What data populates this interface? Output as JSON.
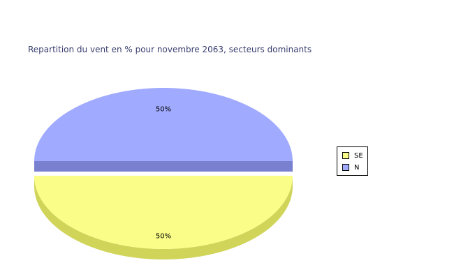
{
  "chart_data": {
    "type": "pie",
    "title": "Repartition du vent en % pour novembre 2063, secteurs dominants",
    "slices": [
      {
        "name": "SE",
        "value": 50,
        "label": "50%",
        "color": "#fafe88",
        "side_color": "#d0d458"
      },
      {
        "name": "N",
        "value": 50,
        "label": "50%",
        "color": "#a0aafe",
        "side_color": "#7a80d0"
      }
    ],
    "legend_placement": "right",
    "three_d": true
  }
}
